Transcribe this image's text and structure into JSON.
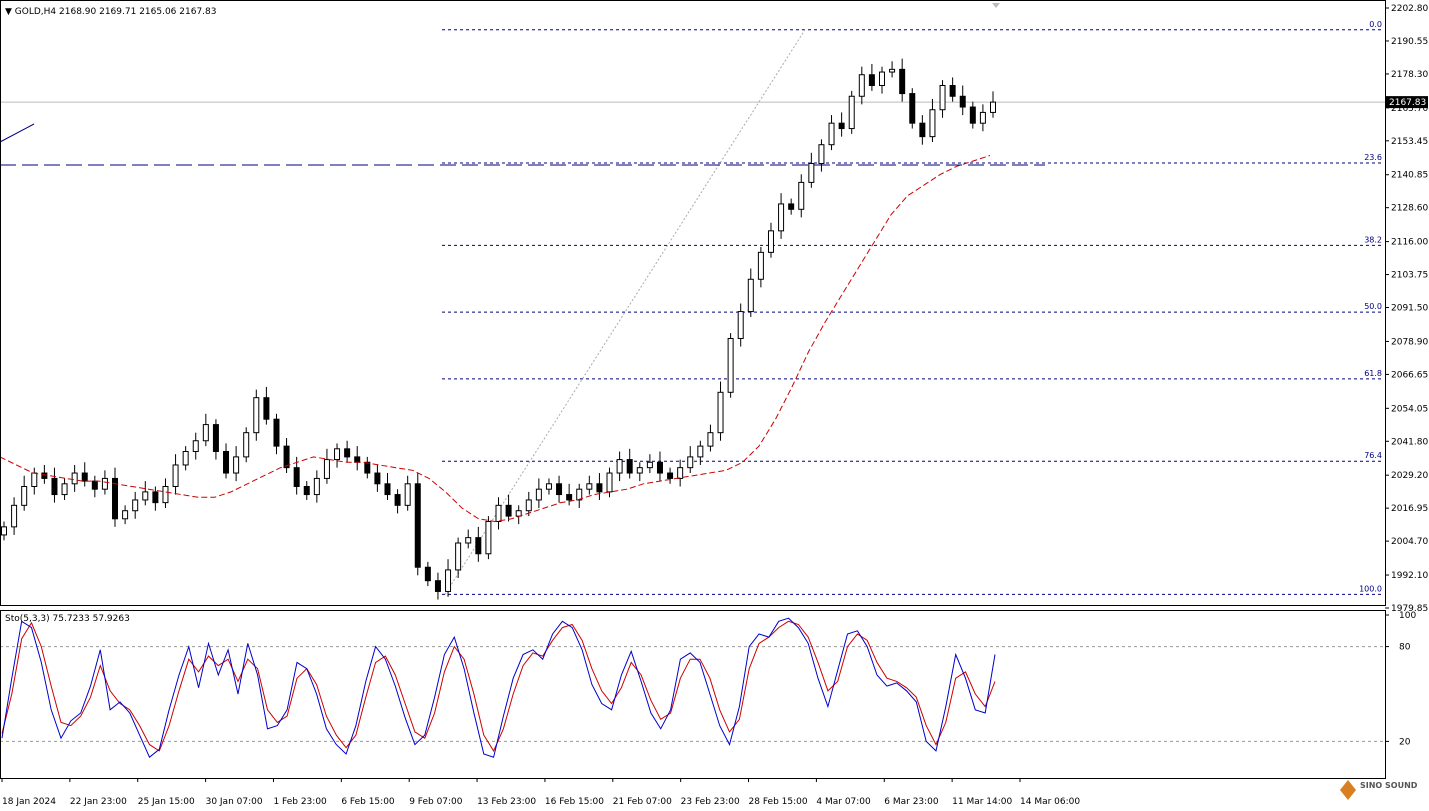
{
  "header": {
    "symbol": "GOLD,H4",
    "ohlc": "2168.90 2169.71 2165.06 2167.83"
  },
  "indicator": {
    "label": "Sto(5,3,3) 75.7233 57.9263",
    "levels": [
      "100",
      "80",
      "20"
    ]
  },
  "watermark": {
    "text": "SINO SOUND"
  },
  "colors": {
    "candle": "#000000",
    "ma": "#cc0000",
    "fib": "#000080",
    "stoch_main": "#0000cc",
    "stoch_signal": "#cc0000",
    "grid": "#999999",
    "price_tag_bg": "#000000"
  },
  "chart_data": [
    {
      "type": "candlestick",
      "timeframe": "H4",
      "price_range": [
        1979.85,
        2202.8
      ],
      "y_tick_labels": [
        "2202.80",
        "2190.55",
        "2178.30",
        "2165.70",
        "2153.45",
        "2140.85",
        "2128.60",
        "2116.00",
        "2103.75",
        "2091.50",
        "2078.90",
        "2066.65",
        "2054.05",
        "2041.80",
        "2029.20",
        "2016.95",
        "2004.70",
        "1992.10",
        "1979.85"
      ],
      "x_tick_labels": [
        "18 Jan 2024",
        "22 Jan 23:00",
        "25 Jan 15:00",
        "30 Jan 07:00",
        "1 Feb 23:00",
        "6 Feb 15:00",
        "9 Feb 07:00",
        "13 Feb 23:00",
        "16 Feb 15:00",
        "21 Feb 07:00",
        "23 Feb 23:00",
        "28 Feb 15:00",
        "4 Mar 07:00",
        "6 Mar 23:00",
        "11 Mar 14:00",
        "14 Mar 06:00"
      ],
      "current_price": "2167.83",
      "close_path": [
        2010,
        2018,
        2025,
        2030,
        2028,
        2022,
        2026,
        2030,
        2027,
        2024,
        2028,
        2013,
        2016,
        2020,
        2023,
        2019,
        2025,
        2033,
        2038,
        2042,
        2048,
        2038,
        2030,
        2036,
        2045,
        2058,
        2050,
        2040,
        2032,
        2025,
        2022,
        2028,
        2035,
        2039,
        2036,
        2034,
        2030,
        2026,
        2022,
        2018,
        2026,
        1995,
        1990,
        1986,
        1994,
        2004,
        2006,
        2000,
        2012,
        2018,
        2014,
        2016,
        2020,
        2024,
        2026,
        2022,
        2020,
        2024,
        2026,
        2023,
        2030,
        2035,
        2030,
        2032,
        2034,
        2030,
        2028,
        2032,
        2036,
        2040,
        2045,
        2060,
        2080,
        2090,
        2102,
        2112,
        2120,
        2130,
        2128,
        2138,
        2145,
        2152,
        2160,
        2158,
        2170,
        2178,
        2174,
        2179,
        2180,
        2171,
        2160,
        2155,
        2165,
        2174,
        2170,
        2166,
        2160,
        2164,
        2167.83
      ],
      "ma_path": [
        2036,
        2033,
        2030,
        2029,
        2028,
        2027,
        2027,
        2026,
        2025,
        2024,
        2023,
        2022,
        2021,
        2021,
        2023,
        2026,
        2029,
        2032,
        2034,
        2036,
        2035,
        2034,
        2034,
        2033,
        2032,
        2031,
        2028,
        2023,
        2017,
        2013,
        2012,
        2013,
        2015,
        2017,
        2019,
        2020,
        2022,
        2023,
        2024,
        2026,
        2027,
        2028,
        2029,
        2030,
        2031,
        2034,
        2040,
        2050,
        2062,
        2075,
        2086,
        2096,
        2106,
        2116,
        2126,
        2133,
        2137,
        2141,
        2144,
        2146,
        2148
      ],
      "fibonacci": [
        {
          "level": "0.0",
          "price": 2194.7
        },
        {
          "level": "23.6",
          "price": 2145.2
        },
        {
          "level": "38.2",
          "price": 2114.6
        },
        {
          "level": "50.0",
          "price": 2089.8
        },
        {
          "level": "61.8",
          "price": 2065.0
        },
        {
          "level": "76.4",
          "price": 2034.4
        },
        {
          "level": "100.0",
          "price": 1984.9
        }
      ]
    },
    {
      "type": "line",
      "name": "Sto(5,3,3)",
      "ylim": [
        0,
        100
      ],
      "levels": [
        80,
        20
      ],
      "main": [
        22,
        60,
        96,
        92,
        70,
        40,
        22,
        33,
        38,
        55,
        78,
        40,
        45,
        38,
        24,
        10,
        15,
        40,
        62,
        80,
        54,
        82,
        62,
        78,
        50,
        82,
        62,
        28,
        30,
        40,
        70,
        66,
        50,
        28,
        18,
        12,
        30,
        58,
        80,
        72,
        55,
        35,
        18,
        24,
        48,
        75,
        86,
        66,
        38,
        12,
        10,
        36,
        60,
        75,
        78,
        72,
        88,
        96,
        92,
        78,
        56,
        44,
        40,
        62,
        77,
        58,
        38,
        28,
        40,
        72,
        76,
        70,
        50,
        30,
        18,
        42,
        80,
        88,
        86,
        96,
        98,
        92,
        82,
        60,
        42,
        65,
        88,
        90,
        80,
        62,
        55,
        57,
        52,
        45,
        20,
        14,
        42,
        75,
        60,
        40,
        38,
        75
      ],
      "signal": [
        25,
        50,
        85,
        95,
        80,
        55,
        32,
        30,
        36,
        48,
        68,
        52,
        44,
        40,
        30,
        18,
        14,
        30,
        52,
        72,
        64,
        74,
        68,
        72,
        58,
        72,
        66,
        40,
        32,
        36,
        60,
        66,
        56,
        36,
        24,
        16,
        24,
        48,
        70,
        74,
        62,
        44,
        26,
        22,
        38,
        64,
        80,
        72,
        50,
        24,
        14,
        28,
        50,
        68,
        76,
        74,
        84,
        92,
        94,
        84,
        66,
        52,
        44,
        54,
        70,
        62,
        46,
        34,
        38,
        60,
        72,
        72,
        60,
        40,
        26,
        34,
        66,
        82,
        86,
        92,
        96,
        94,
        86,
        70,
        52,
        58,
        80,
        88,
        84,
        70,
        60,
        58,
        54,
        48,
        30,
        18,
        32,
        60,
        64,
        50,
        42,
        57.9
      ]
    }
  ]
}
